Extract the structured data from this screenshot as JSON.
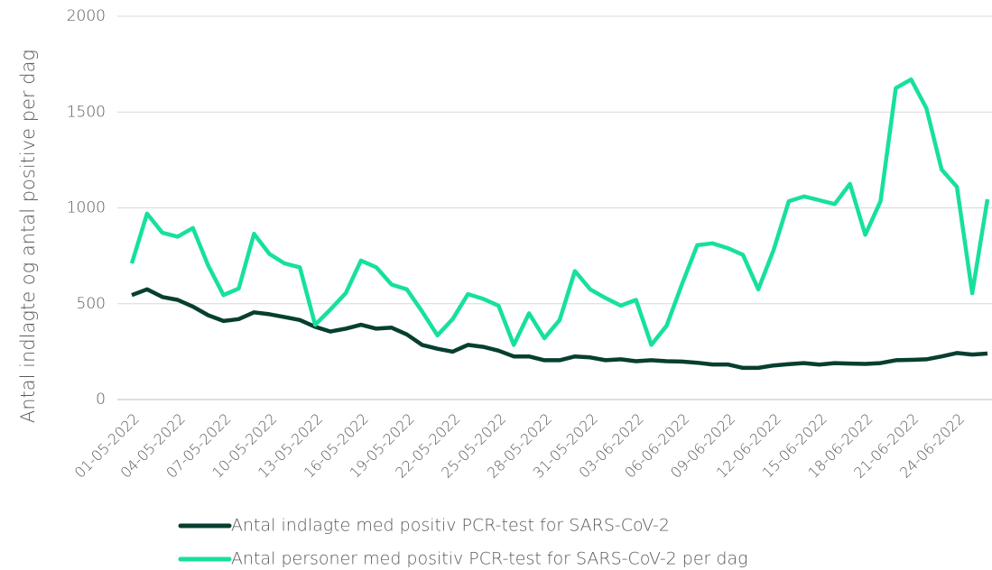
{
  "chart_data": {
    "type": "line",
    "ylabel": "Antal indlagte og antal positive per dag",
    "categories": [
      "01-05-2022",
      null,
      null,
      "04-05-2022",
      null,
      null,
      "07-05-2022",
      null,
      null,
      "10-05-2022",
      null,
      null,
      "13-05-2022",
      null,
      null,
      "16-05-2022",
      null,
      null,
      "19-05-2022",
      null,
      null,
      "22-05-2022",
      null,
      null,
      "25-05-2022",
      null,
      null,
      "28-05-2022",
      null,
      null,
      "31-05-2022",
      null,
      null,
      "03-06-2022",
      null,
      null,
      "06-06-2022",
      null,
      null,
      "09-06-2022",
      null,
      null,
      "12-06-2022",
      null,
      null,
      "15-06-2022",
      null,
      null,
      "18-06-2022",
      null,
      null,
      "21-06-2022",
      null,
      null,
      "24-06-2022",
      null,
      null
    ],
    "series": [
      {
        "name": "Antal indlagte med positiv PCR-test for SARS-CoV-2",
        "color": "#063f30",
        "values": [
          545,
          575,
          535,
          520,
          485,
          440,
          410,
          420,
          455,
          445,
          430,
          415,
          380,
          355,
          370,
          390,
          370,
          375,
          340,
          285,
          265,
          250,
          285,
          275,
          255,
          225,
          225,
          205,
          205,
          225,
          220,
          205,
          210,
          200,
          205,
          200,
          198,
          192,
          183,
          183,
          165,
          165,
          178,
          185,
          190,
          182,
          190,
          188,
          186,
          190,
          205,
          207,
          210,
          225,
          243,
          235,
          240
        ]
      },
      {
        "name": "Antal personer med positiv PCR-test for SARS-CoV-2 per dag",
        "color": "#17e09e",
        "values": [
          710,
          970,
          870,
          850,
          895,
          700,
          545,
          580,
          865,
          760,
          710,
          690,
          390,
          470,
          555,
          725,
          690,
          600,
          575,
          460,
          335,
          420,
          550,
          525,
          490,
          285,
          450,
          320,
          415,
          670,
          575,
          530,
          490,
          520,
          285,
          385,
          600,
          805,
          815,
          790,
          755,
          575,
          780,
          1035,
          1060,
          1040,
          1020,
          1125,
          860,
          1035,
          1625,
          1670,
          1520,
          1200,
          1110,
          555,
          1045
        ]
      }
    ],
    "ylim": [
      0,
      2000
    ],
    "yticks": [
      0,
      500,
      1000,
      1500,
      2000
    ],
    "grid": true
  }
}
